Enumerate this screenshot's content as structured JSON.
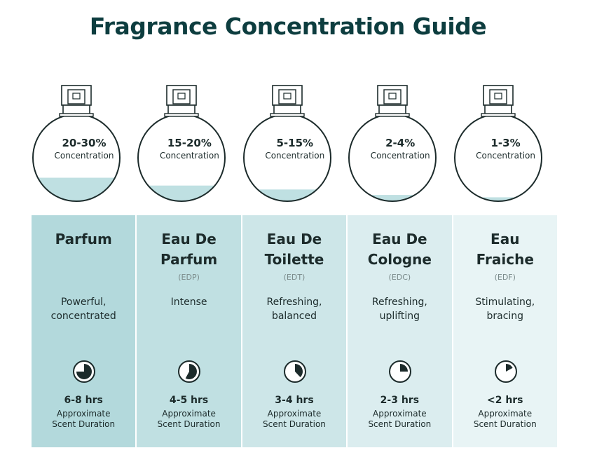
{
  "title": "Fragrance Concentration Guide",
  "colors": {
    "title": "#0d3d3f",
    "liquid": "#bfe0e2",
    "bottle_outline": "#1c2b2b",
    "column_backgrounds": [
      "#b3d9dc",
      "#c0e0e2",
      "#cde6e8",
      "#dbedef",
      "#e8f4f5"
    ]
  },
  "fragrances": [
    {
      "concentration": "20-30%",
      "concentration_label": "Concentration",
      "fill_level": 0.3,
      "name_lines": [
        "Parfum",
        ""
      ],
      "abbr": "",
      "desc_lines": [
        "Powerful,",
        "concentrated"
      ],
      "duration_fraction": 0.75,
      "icon": "clock-pie-icon",
      "hours": "6-8 hrs",
      "duration_lines": [
        "Approximate",
        "Scent Duration"
      ]
    },
    {
      "concentration": "15-20%",
      "concentration_label": "Concentration",
      "fill_level": 0.2,
      "name_lines": [
        "Eau De",
        "Parfum"
      ],
      "abbr": "(EDP)",
      "desc_lines": [
        "Intense",
        ""
      ],
      "duration_fraction": 0.58,
      "icon": "clock-pie-icon",
      "hours": "4-5 hrs",
      "duration_lines": [
        "Approximate",
        "Scent Duration"
      ]
    },
    {
      "concentration": "5-15%",
      "concentration_label": "Concentration",
      "fill_level": 0.15,
      "name_lines": [
        "Eau De",
        "Toilette"
      ],
      "abbr": "(EDT)",
      "desc_lines": [
        "Refreshing,",
        "balanced"
      ],
      "duration_fraction": 0.38,
      "icon": "clock-pie-icon",
      "hours": "3-4 hrs",
      "duration_lines": [
        "Approximate",
        "Scent Duration"
      ]
    },
    {
      "concentration": "2-4%",
      "concentration_label": "Concentration",
      "fill_level": 0.08,
      "name_lines": [
        "Eau De",
        "Cologne"
      ],
      "abbr": "(EDC)",
      "desc_lines": [
        "Refreshing,",
        "uplifting"
      ],
      "duration_fraction": 0.25,
      "icon": "clock-pie-icon",
      "hours": "2-3 hrs",
      "duration_lines": [
        "Approximate",
        "Scent Duration"
      ]
    },
    {
      "concentration": "1-3%",
      "concentration_label": "Concentration",
      "fill_level": 0.05,
      "name_lines": [
        "Eau",
        "Fraiche"
      ],
      "abbr": "(EDF)",
      "desc_lines": [
        "Stimulating,",
        "bracing"
      ],
      "duration_fraction": 0.17,
      "icon": "clock-pie-icon",
      "hours": "<2 hrs",
      "duration_lines": [
        "Approximate",
        "Scent Duration"
      ]
    }
  ]
}
